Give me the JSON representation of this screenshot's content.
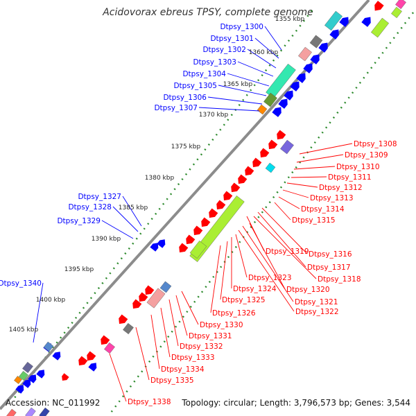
{
  "title": "Acidovorax ebreus TPSY, complete genome",
  "footer": {
    "accession": "Accession: NC_011992",
    "topology": "Topology: circular; Length: 3,796,573 bp; Genes: 3,544"
  },
  "colors": {
    "forward_strand": "#ff0000",
    "reverse_strand": "#0000ff",
    "backbone": "#8c8c8c",
    "ticks": "#2e8b2e"
  },
  "kbp_ticks": [
    "1355 kbp",
    "1360 kbp",
    "1365 kbp",
    "1370 kbp",
    "1375 kbp",
    "1380 kbp",
    "1385 kbp",
    "1390 kbp",
    "1395 kbp",
    "1400 kbp",
    "1405 kbp"
  ],
  "reverse_labels": [
    "Dtpsy_1300",
    "Dtpsy_1301",
    "Dtpsy_1302",
    "Dtpsy_1303",
    "Dtpsy_1304",
    "Dtpsy_1305",
    "Dtpsy_1306",
    "Dtpsy_1307",
    "Dtpsy_1327",
    "Dtpsy_1328",
    "Dtpsy_1329",
    "Dtpsy_1340"
  ],
  "forward_labels": [
    "Dtpsy_1308",
    "Dtpsy_1309",
    "Dtpsy_1310",
    "Dtpsy_1311",
    "Dtpsy_1312",
    "Dtpsy_1313",
    "Dtpsy_1314",
    "Dtpsy_1315",
    "Dtpsy_1316",
    "Dtpsy_1317",
    "Dtpsy_1318",
    "Dtpsy_1319",
    "Dtpsy_1320",
    "Dtpsy_1321",
    "Dtpsy_1322",
    "Dtpsy_1323",
    "Dtpsy_1324",
    "Dtpsy_1325",
    "Dtpsy_1326",
    "Dtpsy_1330",
    "Dtpsy_1331",
    "Dtpsy_1332",
    "Dtpsy_1333",
    "Dtpsy_1334",
    "Dtpsy_1335",
    "Dtpsy_1338"
  ]
}
